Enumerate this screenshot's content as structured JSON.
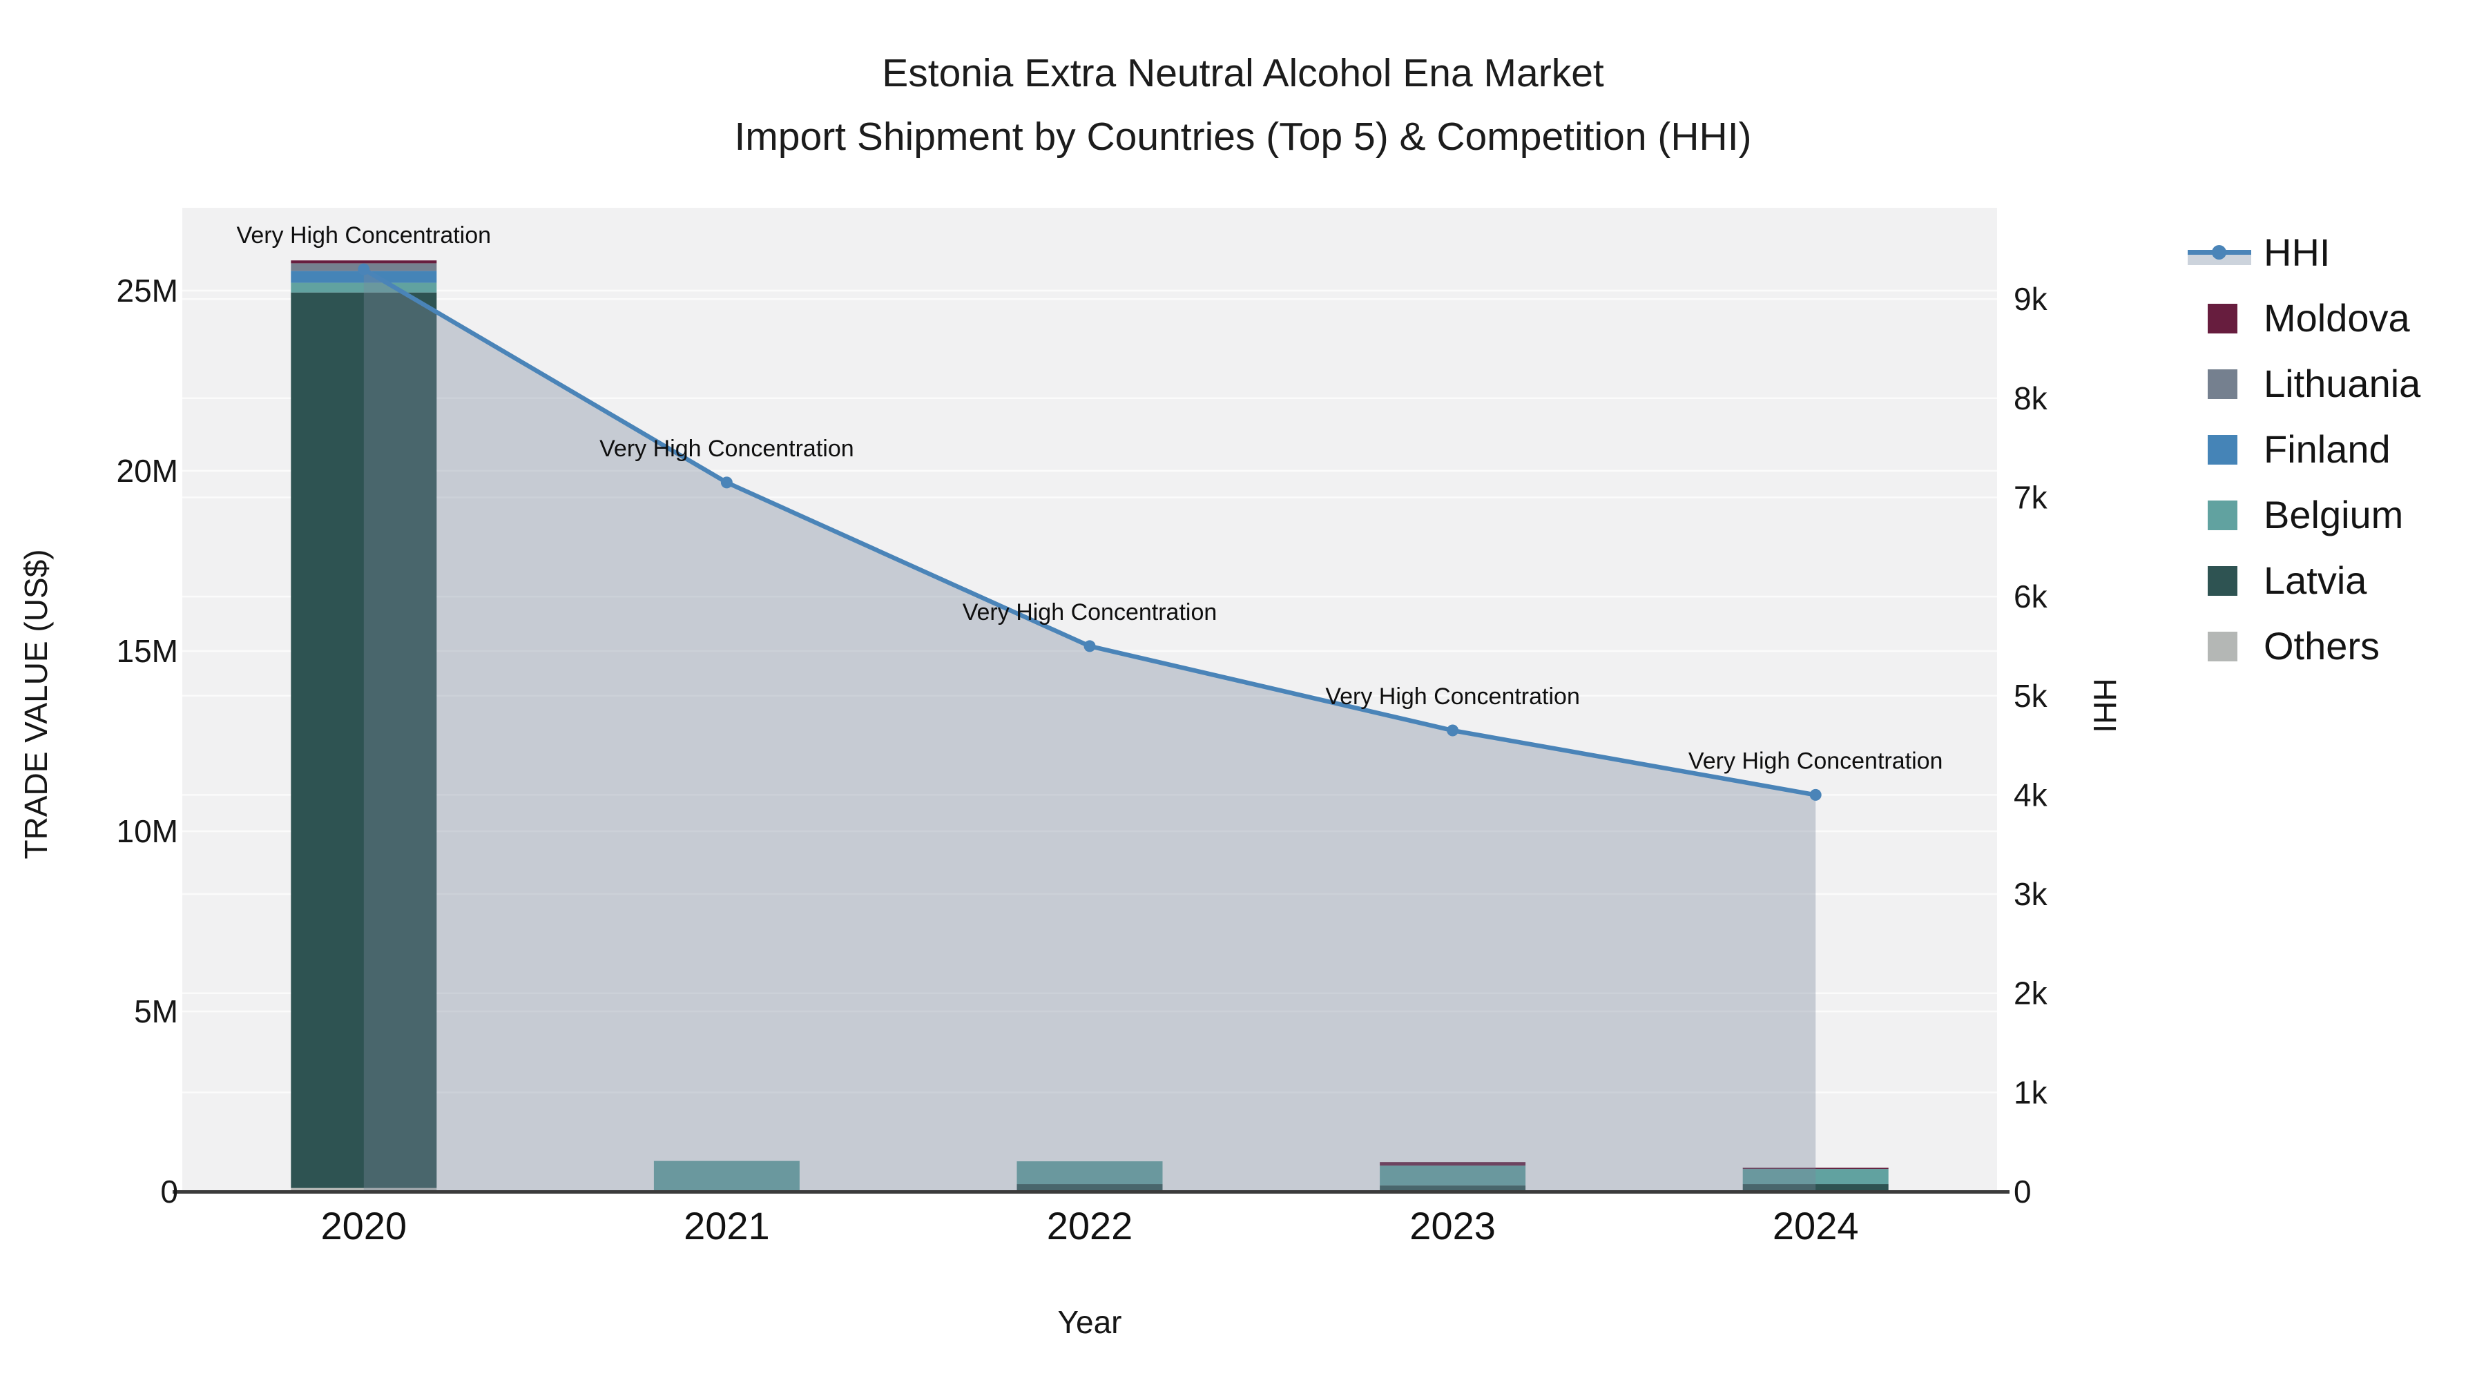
{
  "title": {
    "line1": "Estonia Extra Neutral Alcohol Ena Market",
    "line2": "Import Shipment by Countries (Top 5) & Competition (HHI)"
  },
  "chart_data": {
    "type": "combo-stacked-bar-and-line-area-dual-axis",
    "categories": [
      "2020",
      "2021",
      "2022",
      "2023",
      "2024"
    ],
    "xlabel": "Year",
    "left_axis": {
      "title": "TRADE VALUE (US$)",
      "unit": "million US$",
      "max": 27.3,
      "ticks": [
        {
          "value": 0,
          "label": "0"
        },
        {
          "value": 5,
          "label": "5M"
        },
        {
          "value": 10,
          "label": "10M"
        },
        {
          "value": 15,
          "label": "15M"
        },
        {
          "value": 20,
          "label": "20M"
        },
        {
          "value": 25,
          "label": "25M"
        }
      ]
    },
    "right_axis": {
      "title": "HHI",
      "max": 9920,
      "ticks": [
        {
          "value": 0,
          "label": "0"
        },
        {
          "value": 1000,
          "label": "1k"
        },
        {
          "value": 2000,
          "label": "2k"
        },
        {
          "value": 3000,
          "label": "3k"
        },
        {
          "value": 4000,
          "label": "4k"
        },
        {
          "value": 5000,
          "label": "5k"
        },
        {
          "value": 6000,
          "label": "6k"
        },
        {
          "value": 7000,
          "label": "7k"
        },
        {
          "value": 8000,
          "label": "8k"
        },
        {
          "value": 9000,
          "label": "9k"
        }
      ]
    },
    "bar_series": [
      {
        "name": "Moldova",
        "color": "#671d3e",
        "values": [
          0.08,
          0,
          0,
          0.1,
          0.03
        ]
      },
      {
        "name": "Lithuania",
        "color": "#75808f",
        "values": [
          0.21,
          0,
          0,
          0,
          0
        ]
      },
      {
        "name": "Finland",
        "color": "#4584b7",
        "values": [
          0.33,
          0,
          0,
          0,
          0
        ]
      },
      {
        "name": "Belgium",
        "color": "#61a2a0",
        "values": [
          0.27,
          0.85,
          0.63,
          0.55,
          0.42
        ]
      },
      {
        "name": "Latvia",
        "color": "#2e5352",
        "values": [
          24.85,
          0,
          0.21,
          0.17,
          0.18
        ]
      },
      {
        "name": "Others",
        "color": "#b4b7b5",
        "values": [
          0.1,
          0,
          0,
          0,
          0.03
        ]
      }
    ],
    "hhi": {
      "name": "HHI",
      "color": "#4a84b8",
      "fill": "rgba(122,136,156,0.36)",
      "values": [
        9300,
        7150,
        5500,
        4650,
        4000
      ]
    },
    "annotations": [
      {
        "index": 0,
        "text": "Very High Concentration"
      },
      {
        "index": 1,
        "text": "Very High Concentration"
      },
      {
        "index": 2,
        "text": "Very High Concentration"
      },
      {
        "index": 3,
        "text": "Very High Concentration"
      },
      {
        "index": 4,
        "text": "Very High Concentration"
      }
    ],
    "style": {
      "plot_bg": "#f1f1f2",
      "grid_color": "#fbfbfb",
      "axis_line_color": "#3b3b3b",
      "text_color": "#161616"
    },
    "layout_hints": {
      "legend_position": "right",
      "grid": true
    }
  }
}
